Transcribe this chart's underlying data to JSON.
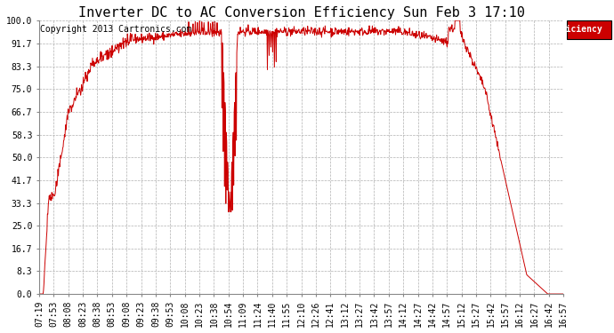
{
  "title": "Inverter DC to AC Conversion Efficiency Sun Feb 3 17:10",
  "copyright": "Copyright 2013 Cartronics.com",
  "legend_label": "Efficiency  (%)",
  "legend_bg": "#cc0000",
  "line_color": "#cc0000",
  "bg_color": "#ffffff",
  "plot_bg_color": "#ffffff",
  "grid_color": "#b0b0b0",
  "ytick_labels": [
    "0.0",
    "8.3",
    "16.7",
    "25.0",
    "33.3",
    "41.7",
    "50.0",
    "58.3",
    "66.7",
    "75.0",
    "83.3",
    "91.7",
    "100.0"
  ],
  "ytick_values": [
    0.0,
    8.3,
    16.7,
    25.0,
    33.3,
    41.7,
    50.0,
    58.3,
    66.7,
    75.0,
    83.3,
    91.7,
    100.0
  ],
  "xtick_labels": [
    "07:19",
    "07:53",
    "08:08",
    "08:23",
    "08:38",
    "08:53",
    "09:08",
    "09:23",
    "09:38",
    "09:53",
    "10:08",
    "10:23",
    "10:38",
    "10:54",
    "11:09",
    "11:24",
    "11:40",
    "11:55",
    "12:10",
    "12:26",
    "12:41",
    "13:12",
    "13:27",
    "13:42",
    "13:57",
    "14:12",
    "14:27",
    "14:42",
    "14:57",
    "15:12",
    "15:27",
    "15:42",
    "15:57",
    "16:12",
    "16:27",
    "16:42",
    "16:57"
  ],
  "ylim": [
    0.0,
    100.0
  ],
  "title_fontsize": 11,
  "tick_fontsize": 7,
  "copyright_fontsize": 7
}
